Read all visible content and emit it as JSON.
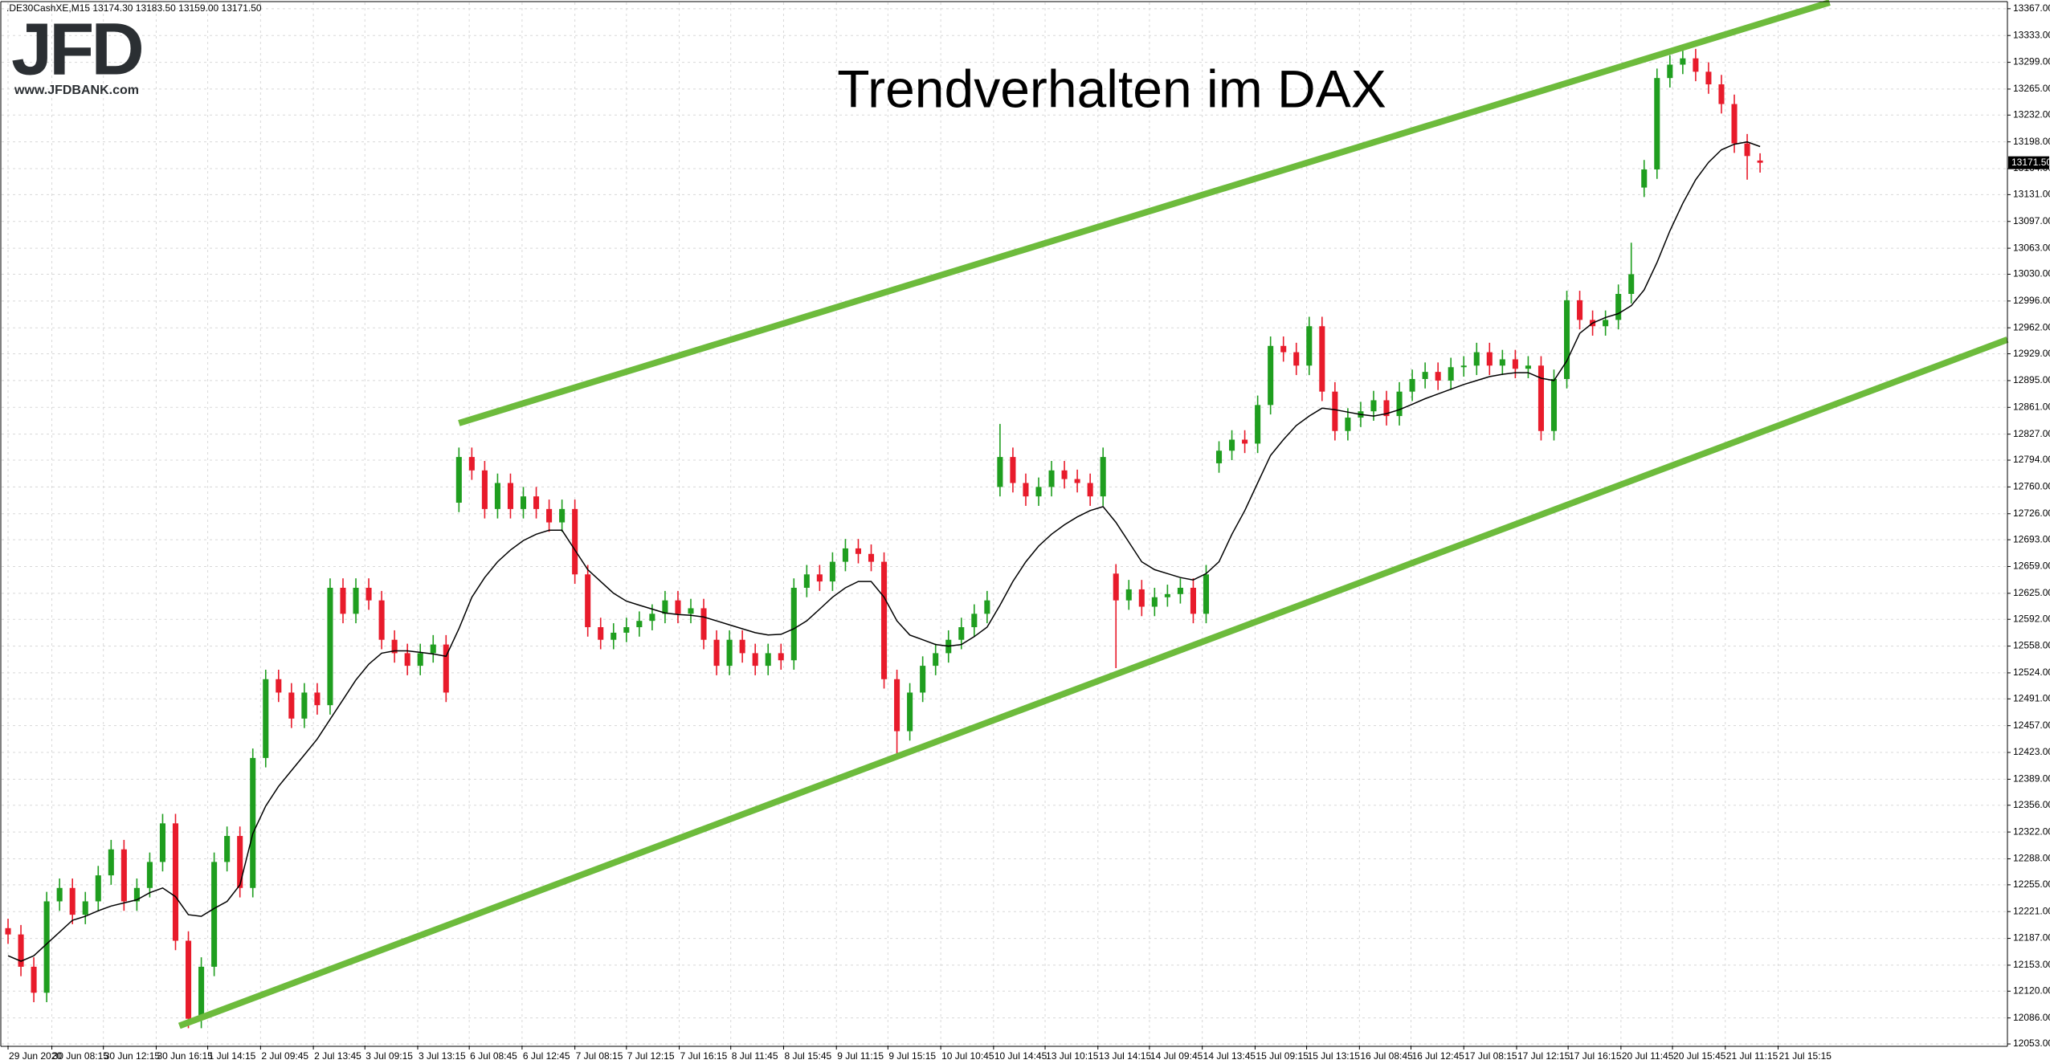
{
  "header": ".DE30CashXE,M15  13174.30 13183.50 13159.00 13171.50",
  "logo": {
    "name": "JFD",
    "url": "www.JFDBANK.com"
  },
  "chart_data": {
    "type": "candlestick",
    "title": "Trendverhalten im DAX",
    "up_color": "#1f9e1f",
    "down_color": "#e81b2b",
    "grid": true,
    "xlim": [
      -0.5,
      155.2
    ],
    "ylim": [
      12051,
      13375
    ],
    "open": [
      12200,
      12192,
      12151,
      12118,
      12234,
      12251,
      12217,
      12234,
      12267,
      12300,
      12234,
      12251,
      12284,
      12333,
      12184,
      12085,
      12151,
      12284,
      12317,
      12251,
      12416,
      12516,
      12499,
      12466,
      12499,
      12483,
      12632,
      12599,
      12632,
      12616,
      12566,
      12549,
      12533,
      12549,
      12560,
      12740,
      12798,
      12781,
      12732,
      12765,
      12732,
      12748,
      12732,
      12715,
      12732,
      12649,
      12582,
      12566,
      12575,
      12582,
      12590,
      12599,
      12616,
      12599,
      12606,
      12566,
      12533,
      12566,
      12549,
      12533,
      12549,
      12540,
      12632,
      12649,
      12640,
      12665,
      12682,
      12675,
      12665,
      12516,
      12450,
      12499,
      12533,
      12549,
      12566,
      12582,
      12599,
      12760,
      12798,
      12765,
      12748,
      12760,
      12781,
      12770,
      12765,
      12748,
      12650,
      12616,
      12630,
      12608,
      12620,
      12624,
      12632,
      12599,
      12790,
      12806,
      12820,
      12815,
      12864,
      12939,
      12931,
      12914,
      12964,
      12881,
      12831,
      12848,
      12856,
      12870,
      12850,
      12881,
      12897,
      12906,
      12895,
      12912,
      12914,
      12931,
      12914,
      12922,
      12910,
      12914,
      12831,
      12897,
      12997,
      12972,
      12964,
      12972,
      13005,
      13140,
      13163,
      13279,
      13296,
      13304,
      13287,
      13271,
      13246,
      13196,
      13174.3
    ],
    "high": [
      12212,
      12204,
      12163,
      12246,
      12263,
      12263,
      12246,
      12279,
      12312,
      12312,
      12263,
      12296,
      12345,
      12345,
      12196,
      12163,
      12296,
      12329,
      12329,
      12428,
      12528,
      12528,
      12511,
      12511,
      12511,
      12644,
      12644,
      12644,
      12644,
      12628,
      12578,
      12561,
      12561,
      12572,
      12572,
      12810,
      12810,
      12793,
      12777,
      12777,
      12760,
      12760,
      12744,
      12744,
      12744,
      12661,
      12594,
      12587,
      12594,
      12602,
      12611,
      12628,
      12628,
      12618,
      12618,
      12578,
      12578,
      12578,
      12561,
      12561,
      12561,
      12644,
      12661,
      12661,
      12677,
      12694,
      12694,
      12687,
      12677,
      12528,
      12511,
      12545,
      12561,
      12578,
      12594,
      12611,
      12628,
      12840,
      12810,
      12777,
      12772,
      12793,
      12793,
      12782,
      12777,
      12810,
      12662,
      12642,
      12642,
      12632,
      12636,
      12644,
      12644,
      12661,
      12818,
      12832,
      12832,
      12876,
      12951,
      12951,
      12943,
      12976,
      12976,
      12893,
      12860,
      12868,
      12882,
      12882,
      12893,
      12909,
      12918,
      12918,
      12924,
      12926,
      12943,
      12943,
      12934,
      12934,
      12926,
      12926,
      12909,
      13009,
      13009,
      12984,
      12984,
      13017,
      13070,
      13175,
      13291,
      13308,
      13316,
      13316,
      13299,
      13283,
      13258,
      13208,
      13183.5
    ],
    "low": [
      12180,
      12139,
      12106,
      12106,
      12222,
      12205,
      12205,
      12222,
      12255,
      12222,
      12222,
      12239,
      12272,
      12172,
      12073,
      12073,
      12139,
      12272,
      12239,
      12239,
      12404,
      12487,
      12454,
      12454,
      12471,
      12471,
      12587,
      12587,
      12604,
      12554,
      12537,
      12521,
      12521,
      12537,
      12487,
      12728,
      12769,
      12720,
      12720,
      12720,
      12720,
      12720,
      12703,
      12703,
      12637,
      12570,
      12554,
      12554,
      12563,
      12570,
      12578,
      12587,
      12587,
      12587,
      12554,
      12521,
      12521,
      12537,
      12521,
      12521,
      12528,
      12528,
      12620,
      12628,
      12628,
      12653,
      12663,
      12653,
      12504,
      12420,
      12438,
      12487,
      12521,
      12537,
      12554,
      12570,
      12587,
      12748,
      12753,
      12736,
      12736,
      12748,
      12758,
      12753,
      12736,
      12736,
      12530,
      12604,
      12596,
      12596,
      12608,
      12612,
      12587,
      12587,
      12778,
      12794,
      12803,
      12803,
      12852,
      12919,
      12902,
      12902,
      12869,
      12819,
      12819,
      12836,
      12844,
      12838,
      12838,
      12869,
      12885,
      12883,
      12883,
      12900,
      12902,
      12902,
      12902,
      12898,
      12898,
      12819,
      12819,
      12885,
      12960,
      12952,
      12952,
      12960,
      12993,
      13128,
      13151,
      13267,
      13284,
      13275,
      13259,
      13234,
      13184,
      13150,
      13159
    ],
    "close": [
      12192,
      12151,
      12118,
      12234,
      12251,
      12217,
      12234,
      12267,
      12300,
      12234,
      12251,
      12284,
      12333,
      12184,
      12085,
      12151,
      12284,
      12317,
      12251,
      12416,
      12516,
      12499,
      12466,
      12499,
      12483,
      12632,
      12599,
      12632,
      12616,
      12566,
      12549,
      12533,
      12549,
      12560,
      12499,
      12798,
      12781,
      12732,
      12765,
      12732,
      12748,
      12732,
      12715,
      12732,
      12649,
      12582,
      12566,
      12575,
      12582,
      12590,
      12599,
      12616,
      12599,
      12606,
      12566,
      12533,
      12566,
      12549,
      12533,
      12549,
      12540,
      12632,
      12649,
      12640,
      12665,
      12682,
      12675,
      12665,
      12516,
      12450,
      12499,
      12533,
      12549,
      12566,
      12582,
      12599,
      12616,
      12798,
      12765,
      12748,
      12760,
      12781,
      12770,
      12765,
      12748,
      12798,
      12616,
      12630,
      12608,
      12620,
      12624,
      12632,
      12599,
      12649,
      12806,
      12820,
      12815,
      12864,
      12939,
      12931,
      12914,
      12964,
      12881,
      12831,
      12848,
      12856,
      12870,
      12850,
      12881,
      12897,
      12906,
      12895,
      12912,
      12914,
      12931,
      12914,
      12922,
      12910,
      12914,
      12831,
      12897,
      12997,
      12972,
      12964,
      12972,
      13005,
      13030,
      13163,
      13279,
      13296,
      13304,
      13287,
      13271,
      13246,
      13196,
      13180,
      13171.5
    ],
    "ma": {
      "color": "#000000",
      "values": [
        12165,
        12158,
        12165,
        12180,
        12195,
        12210,
        12215,
        12222,
        12228,
        12232,
        12236,
        12245,
        12251,
        12240,
        12217,
        12215,
        12225,
        12234,
        12255,
        12320,
        12355,
        12380,
        12400,
        12420,
        12440,
        12465,
        12490,
        12515,
        12535,
        12549,
        12552,
        12552,
        12550,
        12548,
        12545,
        12580,
        12620,
        12645,
        12665,
        12680,
        12692,
        12700,
        12705,
        12705,
        12680,
        12655,
        12640,
        12625,
        12615,
        12610,
        12605,
        12600,
        12598,
        12597,
        12595,
        12590,
        12585,
        12580,
        12575,
        12572,
        12573,
        12580,
        12590,
        12605,
        12620,
        12632,
        12640,
        12640,
        12620,
        12590,
        12572,
        12566,
        12560,
        12558,
        12560,
        12570,
        12582,
        12610,
        12640,
        12665,
        12685,
        12700,
        12712,
        12722,
        12730,
        12735,
        12715,
        12690,
        12665,
        12655,
        12650,
        12645,
        12642,
        12650,
        12665,
        12700,
        12730,
        12765,
        12800,
        12820,
        12838,
        12850,
        12860,
        12858,
        12855,
        12852,
        12850,
        12853,
        12858,
        12865,
        12872,
        12878,
        12884,
        12890,
        12895,
        12900,
        12903,
        12905,
        12905,
        12898,
        12895,
        12920,
        12955,
        12968,
        12975,
        12980,
        12990,
        13010,
        13045,
        13085,
        13120,
        13150,
        13172,
        13188,
        13195,
        13198,
        13192
      ]
    },
    "trend_lines": {
      "color": "#6dbb3c",
      "lines": [
        {
          "x": [
            35,
            141.4
          ],
          "y": [
            12841,
            13375
          ]
        },
        {
          "x": [
            13.3,
            155.2
          ],
          "y": [
            12076,
            12947
          ]
        }
      ]
    },
    "last_price": {
      "value": 13171.5,
      "label": "13171.50"
    },
    "yticks": [
      {
        "value": 13367,
        "label": "13367.00"
      },
      {
        "value": 13333,
        "label": "13333.00"
      },
      {
        "value": 13299,
        "label": "13299.00"
      },
      {
        "value": 13265,
        "label": "13265.00"
      },
      {
        "value": 13232,
        "label": "13232.00"
      },
      {
        "value": 13198,
        "label": "13198.00"
      },
      {
        "value": 13164,
        "label": "13164.00"
      },
      {
        "value": 13131,
        "label": "13131.00"
      },
      {
        "value": 13097,
        "label": "13097.00"
      },
      {
        "value": 13063,
        "label": "13063.00"
      },
      {
        "value": 13030,
        "label": "13030.00"
      },
      {
        "value": 12996,
        "label": "12996.00"
      },
      {
        "value": 12962,
        "label": "12962.00"
      },
      {
        "value": 12929,
        "label": "12929.00"
      },
      {
        "value": 12895,
        "label": "12895.00"
      },
      {
        "value": 12861,
        "label": "12861.00"
      },
      {
        "value": 12827,
        "label": "12827.00"
      },
      {
        "value": 12794,
        "label": "12794.00"
      },
      {
        "value": 12760,
        "label": "12760.00"
      },
      {
        "value": 12726,
        "label": "12726.00"
      },
      {
        "value": 12693,
        "label": "12693.00"
      },
      {
        "value": 12659,
        "label": "12659.00"
      },
      {
        "value": 12625,
        "label": "12625.00"
      },
      {
        "value": 12592,
        "label": "12592.00"
      },
      {
        "value": 12558,
        "label": "12558.00"
      },
      {
        "value": 12524,
        "label": "12524.00"
      },
      {
        "value": 12491,
        "label": "12491.00"
      },
      {
        "value": 12457,
        "label": "12457.00"
      },
      {
        "value": 12423,
        "label": "12423.00"
      },
      {
        "value": 12389,
        "label": "12389.00"
      },
      {
        "value": 12356,
        "label": "12356.00"
      },
      {
        "value": 12322,
        "label": "12322.00"
      },
      {
        "value": 12288,
        "label": "12288.00"
      },
      {
        "value": 12255,
        "label": "12255.00"
      },
      {
        "value": 12221,
        "label": "12221.00"
      },
      {
        "value": 12187,
        "label": "12187.00"
      },
      {
        "value": 12153,
        "label": "12153.00"
      },
      {
        "value": 12120,
        "label": "12120.00"
      },
      {
        "value": 12086,
        "label": "12086.00"
      },
      {
        "value": 12053,
        "label": "12053.00"
      }
    ],
    "xticks": [
      {
        "value": 0,
        "label": "29 Jun 2020"
      },
      {
        "value": 3.4,
        "label": "30 Jun 08:15"
      },
      {
        "value": 7.4,
        "label": "30 Jun 12:15"
      },
      {
        "value": 11.5,
        "label": "30 Jun 16:15"
      },
      {
        "value": 15.5,
        "label": "1 Jul 14:15"
      },
      {
        "value": 19.6,
        "label": "2 Jul 09:45"
      },
      {
        "value": 23.7,
        "label": "2 Jul 13:45"
      },
      {
        "value": 27.7,
        "label": "3 Jul 09:15"
      },
      {
        "value": 31.8,
        "label": "3 Jul 13:15"
      },
      {
        "value": 35.8,
        "label": "6 Jul 08:45"
      },
      {
        "value": 39.9,
        "label": "6 Jul 12:45"
      },
      {
        "value": 44,
        "label": "7 Jul 08:15"
      },
      {
        "value": 48,
        "label": "7 Jul 12:15"
      },
      {
        "value": 52.1,
        "label": "7 Jul 16:15"
      },
      {
        "value": 56.1,
        "label": "8 Jul 11:45"
      },
      {
        "value": 60.2,
        "label": "8 Jul 15:45"
      },
      {
        "value": 64.3,
        "label": "9 Jul 11:15"
      },
      {
        "value": 68.3,
        "label": "9 Jul 15:15"
      },
      {
        "value": 72.4,
        "label": "10 Jul 10:45"
      },
      {
        "value": 76.5,
        "label": "10 Jul 14:45"
      },
      {
        "value": 80.5,
        "label": "13 Jul 10:15"
      },
      {
        "value": 84.6,
        "label": "13 Jul 14:15"
      },
      {
        "value": 88.6,
        "label": "14 Jul 09:45"
      },
      {
        "value": 92.7,
        "label": "14 Jul 13:45"
      },
      {
        "value": 96.8,
        "label": "15 Jul 09:15"
      },
      {
        "value": 100.8,
        "label": "15 Jul 13:15"
      },
      {
        "value": 104.9,
        "label": "16 Jul 08:45"
      },
      {
        "value": 108.9,
        "label": "16 Jul 12:45"
      },
      {
        "value": 113,
        "label": "17 Jul 08:15"
      },
      {
        "value": 117.1,
        "label": "17 Jul 12:15"
      },
      {
        "value": 121.1,
        "label": "17 Jul 16:15"
      },
      {
        "value": 125.2,
        "label": "20 Jul 11:45"
      },
      {
        "value": 129.2,
        "label": "20 Jul 15:45"
      },
      {
        "value": 133.3,
        "label": "21 Jul 11:15"
      },
      {
        "value": 137.4,
        "label": "21 Jul 15:15"
      }
    ]
  }
}
